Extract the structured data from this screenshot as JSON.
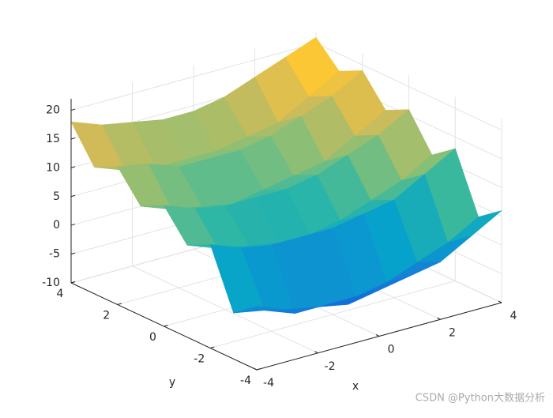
{
  "chart_data": {
    "type": "surface",
    "xlabel": "x",
    "ylabel": "y",
    "x": [
      -4,
      -3,
      -2,
      -1,
      0,
      1,
      2,
      3,
      4
    ],
    "y": [
      -4,
      -3,
      -2,
      -1,
      0,
      1,
      2,
      3,
      4
    ],
    "z": [
      [
        1,
        -1,
        -2,
        -3,
        -2,
        -1,
        0,
        3,
        6
      ],
      [
        -2,
        -3,
        -5,
        -5,
        -5,
        -4,
        -2,
        0,
        3
      ],
      [
        8,
        6,
        5,
        5,
        5,
        6,
        7,
        10,
        13
      ],
      [
        6,
        4,
        3,
        2,
        2,
        3,
        5,
        7,
        10
      ],
      [
        11,
        9,
        8,
        8,
        8,
        9,
        11,
        13,
        16
      ],
      [
        9,
        7,
        6,
        5,
        6,
        7,
        8,
        11,
        14
      ],
      [
        14,
        13,
        11,
        11,
        11,
        12,
        14,
        16,
        19
      ],
      [
        12,
        10,
        9,
        9,
        9,
        10,
        11,
        14,
        17
      ],
      [
        18,
        16,
        15,
        14,
        14,
        15,
        17,
        19,
        21
      ]
    ],
    "xlim": [
      -4,
      4
    ],
    "ylim": [
      -4,
      4
    ],
    "zlim": [
      -10,
      22
    ],
    "xticks": [
      -4,
      -2,
      0,
      2,
      4
    ],
    "yticks": [
      -4,
      -2,
      0,
      2,
      4
    ],
    "zticks": [
      -10,
      -5,
      0,
      5,
      10,
      15,
      20
    ],
    "grid": true,
    "colormap": "parula",
    "watermark": "CSDN @Python大数据分析"
  }
}
